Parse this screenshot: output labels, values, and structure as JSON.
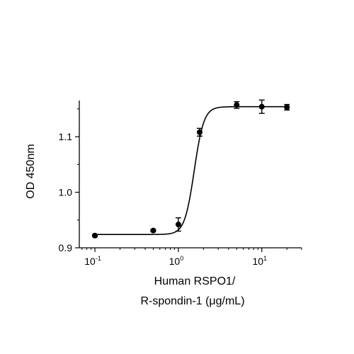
{
  "chart_data": {
    "type": "scatter",
    "title": "",
    "xlabel_lines": [
      "Human RSPO1/",
      "R-spondin-1 (μg/mL)"
    ],
    "ylabel": "OD 450nm",
    "x_scale": "log",
    "xlim": [
      0.065,
      30
    ],
    "ylim": [
      0.9,
      1.16
    ],
    "x_ticks": [
      {
        "value": 0.1,
        "base": "10",
        "exp": "-1"
      },
      {
        "value": 1,
        "base": "10",
        "exp": "0"
      },
      {
        "value": 10,
        "base": "10",
        "exp": "1"
      }
    ],
    "y_ticks": [
      {
        "value": 0.9,
        "label": "0.9"
      },
      {
        "value": 1.0,
        "label": "1.0"
      },
      {
        "value": 1.1,
        "label": "1.1"
      }
    ],
    "grid": false,
    "legend": "none",
    "series": [
      {
        "points": [
          {
            "x": 0.1,
            "y": 0.922,
            "err": 0.002
          },
          {
            "x": 0.5,
            "y": 0.931,
            "err": 0.002
          },
          {
            "x": 1.0,
            "y": 0.942,
            "err": 0.012
          },
          {
            "x": 1.8,
            "y": 1.108,
            "err": 0.007
          },
          {
            "x": 5.0,
            "y": 1.157,
            "err": 0.006
          },
          {
            "x": 10.0,
            "y": 1.154,
            "err": 0.012
          },
          {
            "x": 20.0,
            "y": 1.153,
            "err": 0.005
          }
        ],
        "fit": {
          "model": "4PL",
          "bottom": 0.924,
          "top": 1.154,
          "ec50": 1.55,
          "hill": 7.5
        }
      }
    ],
    "color": "#000000"
  }
}
